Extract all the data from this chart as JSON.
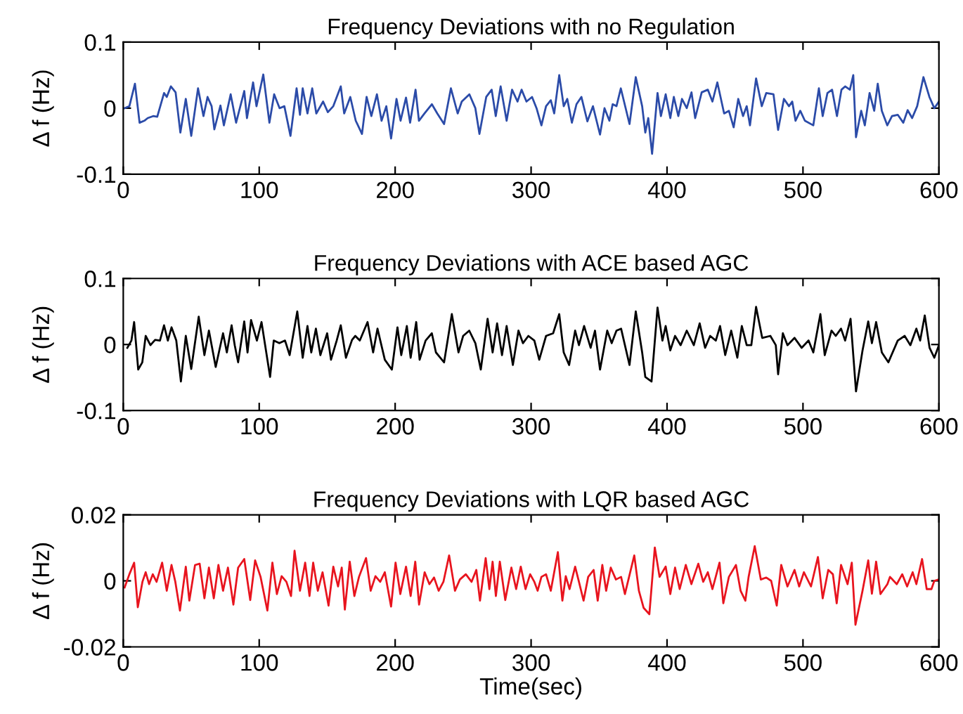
{
  "chart_data": [
    {
      "type": "line",
      "title": "Frequency Deviations with no Regulation",
      "ylabel": "Δ f (Hz)",
      "xlim": [
        0,
        600
      ],
      "xticks": [
        0,
        100,
        200,
        300,
        400,
        500,
        600
      ],
      "ylim": [
        -0.1,
        0.1
      ],
      "yticks": [
        -0.1,
        0,
        0.1
      ],
      "grid": false,
      "series": [
        {
          "color": "#2b4ba8",
          "x": [
            1,
            4.5,
            8.6,
            12,
            15.5,
            18,
            22,
            25,
            30,
            32,
            35,
            38.5,
            42,
            46,
            50,
            55,
            59,
            62,
            65,
            67,
            71.5,
            74,
            79,
            83,
            89,
            91,
            95.5,
            98,
            103,
            107.5,
            111,
            115,
            118.5,
            123,
            127.5,
            130,
            132,
            135.5,
            139,
            142,
            147,
            150.5,
            154.5,
            160,
            162.5,
            167,
            171,
            175.6,
            179,
            182.5,
            186.6,
            190,
            193.5,
            197,
            201,
            204,
            208,
            211,
            215,
            217.5,
            221.6,
            227,
            231,
            236,
            241,
            246,
            249,
            254.6,
            259,
            262,
            267,
            271,
            274,
            277.6,
            282,
            286,
            290,
            293,
            296.6,
            300.7,
            304,
            307.6,
            311,
            314.5,
            317,
            320.7,
            324,
            326.6,
            330,
            333.4,
            337,
            341.4,
            345.5,
            350.7,
            354,
            357.6,
            360,
            362.8,
            366,
            372.4,
            377,
            381.7,
            384,
            386.2,
            389,
            393,
            395.5,
            399,
            402.4,
            405,
            408.3,
            411,
            414.5,
            418,
            420.7,
            425.5,
            430,
            433.4,
            437,
            442,
            445.5,
            449,
            452.4,
            455.9,
            458.6,
            461,
            465.5,
            469.7,
            473,
            478.3,
            481.7,
            486,
            489.7,
            492.1,
            494.5,
            498,
            501.4,
            507.6,
            511.7,
            514.5,
            518,
            521.4,
            525,
            528.3,
            531,
            534.5,
            537,
            539,
            542.8,
            545.5,
            549,
            552.4,
            555,
            558,
            562,
            565.5,
            569.7,
            573.8,
            577,
            580.3,
            584,
            588.6,
            593,
            596.6,
            600
          ],
          "values": [
            0,
            0.003,
            0.037,
            -0.022,
            -0.019,
            -0.015,
            -0.012,
            -0.013,
            0.023,
            0.017,
            0.033,
            0.024,
            -0.037,
            0.014,
            -0.042,
            0.03,
            -0.012,
            0.017,
            0.003,
            -0.032,
            0.004,
            -0.026,
            0.021,
            -0.022,
            0.026,
            -0.015,
            0.039,
            0.003,
            0.051,
            -0.022,
            0.021,
            0,
            0.003,
            -0.042,
            0.03,
            -0.01,
            0.03,
            -0.008,
            0.03,
            -0.008,
            0.01,
            -0.006,
            0.003,
            0.033,
            -0.008,
            0.017,
            -0.019,
            -0.039,
            0.017,
            -0.012,
            0.021,
            -0.019,
            0.003,
            -0.046,
            0.014,
            -0.019,
            0.016,
            -0.022,
            0.028,
            -0.019,
            -0.008,
            0.006,
            -0.008,
            -0.024,
            0.03,
            -0.008,
            0.01,
            0.021,
            0,
            -0.039,
            0.017,
            0.028,
            -0.012,
            0.033,
            -0.019,
            0.028,
            0.01,
            0.028,
            0.01,
            0.017,
            0,
            -0.026,
            0.003,
            0.012,
            -0.008,
            0.05,
            0.003,
            0.014,
            -0.022,
            0.006,
            0.017,
            -0.02,
            0.003,
            -0.04,
            0,
            -0.019,
            0.006,
            0.003,
            0.03,
            -0.024,
            0.047,
            0.003,
            -0.037,
            -0.015,
            -0.069,
            0.023,
            -0.012,
            0.021,
            -0.015,
            0.017,
            -0.012,
            0.014,
            0,
            0.024,
            -0.015,
            0.024,
            0.028,
            0.01,
            0.039,
            -0.008,
            -0.004,
            -0.029,
            0.014,
            -0.012,
            0.003,
            -0.026,
            0.045,
            0.003,
            0.023,
            0.021,
            -0.033,
            0.014,
            0.003,
            0.01,
            -0.019,
            -0.004,
            -0.019,
            -0.026,
            0.03,
            -0.012,
            0.023,
            0.028,
            -0.012,
            0.028,
            0.033,
            0.028,
            0.05,
            -0.044,
            -0.004,
            -0.026,
            0.023,
            -0.004,
            0.037,
            -0.004,
            -0.026,
            -0.012,
            -0.01,
            -0.022,
            -0.003,
            -0.015,
            0.003,
            0.047,
            0.017,
            0,
            0.01
          ]
        }
      ]
    },
    {
      "type": "line",
      "title": "Frequency Deviations with ACE based AGC",
      "ylabel": "Δ f (Hz)",
      "xlim": [
        0,
        600
      ],
      "xticks": [
        0,
        100,
        200,
        300,
        400,
        500,
        600
      ],
      "ylim": [
        -0.1,
        0.1
      ],
      "yticks": [
        -0.1,
        0,
        0.1
      ],
      "grid": false,
      "series": [
        {
          "color": "#000000",
          "x": [
            3,
            6,
            8,
            11,
            14,
            16.5,
            20,
            23.4,
            27,
            30,
            32.8,
            35.5,
            39,
            42.4,
            46,
            50,
            55.5,
            59.7,
            63,
            68,
            73.4,
            76.2,
            79.7,
            82,
            84.5,
            89,
            91.4,
            94,
            98.3,
            101.7,
            108,
            110.7,
            114.8,
            119,
            122.4,
            128,
            132,
            135.5,
            138.3,
            141.7,
            145,
            150,
            152.8,
            157,
            160,
            163.8,
            168.3,
            170.7,
            174,
            179.7,
            183.8,
            187,
            192.4,
            197.6,
            201.7,
            204.5,
            208.6,
            211.4,
            215.5,
            218,
            222.4,
            227,
            230,
            236,
            241.7,
            246.6,
            250,
            254.5,
            259,
            263,
            268,
            271.7,
            275,
            278.6,
            282,
            286.6,
            290.7,
            294,
            298,
            302.4,
            306,
            311,
            316.2,
            320.7,
            324,
            328,
            332.4,
            335.2,
            339,
            343.8,
            347,
            350.7,
            356,
            359.3,
            362.8,
            366.2,
            372.4,
            377,
            381.7,
            384,
            388.6,
            393,
            396.6,
            399,
            402.4,
            405.9,
            410,
            414.5,
            419.7,
            424,
            428,
            431.7,
            435.9,
            439,
            442.8,
            447.2,
            451.7,
            455,
            458.6,
            462,
            465.5,
            470,
            476,
            480,
            481.7,
            485.2,
            488.6,
            493.8,
            499,
            504.1,
            507.6,
            512.8,
            516,
            521,
            524.1,
            528,
            531,
            535,
            539,
            543.8,
            548,
            550.7,
            553.8,
            558,
            562.8,
            569.7,
            574.8,
            579,
            583.4,
            586.2,
            589.6,
            593.1,
            596.6,
            600
          ],
          "values": [
            -0.005,
            0.006,
            0.034,
            -0.038,
            -0.027,
            0.013,
            -0.001,
            0.007,
            0.006,
            0.029,
            0.006,
            0.026,
            0.006,
            -0.056,
            0.013,
            -0.037,
            0.042,
            -0.016,
            0.021,
            -0.034,
            0.017,
            -0.012,
            0.029,
            -0.001,
            -0.027,
            0.035,
            -0.012,
            0.037,
            0.006,
            0.034,
            -0.049,
            0.006,
            0.002,
            0.006,
            -0.016,
            0.05,
            -0.02,
            0.028,
            -0.012,
            0.024,
            -0.016,
            0.017,
            -0.023,
            0.006,
            0.029,
            -0.02,
            0.007,
            0.013,
            0.006,
            0.034,
            -0.012,
            0.024,
            -0.023,
            -0.038,
            0.026,
            -0.016,
            0.028,
            -0.02,
            0.034,
            -0.023,
            0.006,
            0.017,
            -0.012,
            -0.027,
            0.046,
            -0.012,
            0.013,
            0.021,
            0.002,
            -0.038,
            0.039,
            -0.012,
            0.032,
            -0.016,
            0.028,
            -0.031,
            0.021,
            0.002,
            0.013,
            0.006,
            -0.023,
            0.013,
            0.017,
            0.046,
            -0.012,
            -0.031,
            0.021,
            -0.001,
            0.028,
            -0.005,
            0.021,
            -0.038,
            0.021,
            0.002,
            0.021,
            0.024,
            -0.031,
            0.05,
            -0.012,
            -0.049,
            -0.056,
            0.056,
            0.006,
            0.028,
            -0.009,
            0.013,
            -0.001,
            0.021,
            -0.001,
            0.032,
            -0.005,
            0.013,
            0.006,
            0.028,
            -0.016,
            0.021,
            -0.02,
            0.028,
            -0.001,
            -0.001,
            0.057,
            0.01,
            0.013,
            -0.001,
            -0.045,
            0.017,
            -0.001,
            0.01,
            -0.005,
            0.006,
            -0.012,
            0.046,
            -0.016,
            0.021,
            0.013,
            0.024,
            0.006,
            0.039,
            -0.071,
            -0.009,
            0.035,
            0.002,
            0.034,
            -0.012,
            -0.027,
            0.006,
            0.013,
            -0.001,
            0.024,
            0.006,
            0.044,
            -0.005,
            -0.02,
            -0.001
          ]
        }
      ]
    },
    {
      "type": "line",
      "title": "Frequency Deviations with LQR based AGC",
      "xlabel": "Time(sec)",
      "ylabel": "Δ f (Hz)",
      "xlim": [
        0,
        600
      ],
      "xticks": [
        0,
        100,
        200,
        300,
        400,
        500,
        600
      ],
      "ylim": [
        -0.02,
        0.02
      ],
      "yticks": [
        -0.02,
        0,
        0.02
      ],
      "grid": false,
      "series": [
        {
          "color": "#e8141e",
          "x": [
            1,
            4.5,
            8,
            10.7,
            14.1,
            16.5,
            19,
            21.7,
            24.5,
            28.6,
            32,
            35.5,
            38.3,
            41.7,
            46,
            48.6,
            52.8,
            56.2,
            59.7,
            63,
            66.6,
            70,
            73.4,
            77,
            81,
            84.5,
            89,
            93.4,
            97,
            101,
            106,
            109.7,
            113,
            116.5,
            120,
            123.4,
            126,
            130,
            133.8,
            137,
            139.7,
            143.1,
            146.6,
            151,
            154.5,
            158,
            160.7,
            163,
            166.6,
            170,
            173.4,
            178.6,
            182,
            185.5,
            189,
            192.4,
            197,
            200.3,
            203.8,
            208,
            211.4,
            214.8,
            217.6,
            221.7,
            225.2,
            228.6,
            232,
            235.5,
            239.7,
            244,
            247.6,
            252,
            256.2,
            259.7,
            262.4,
            266.6,
            269.3,
            271.7,
            274.1,
            277,
            281,
            285.5,
            289,
            292.4,
            295.9,
            299.3,
            302.4,
            304.8,
            307.6,
            311,
            314.5,
            319.7,
            323,
            325.5,
            328.3,
            332.4,
            335.2,
            338.6,
            342,
            346,
            349,
            352.4,
            355.2,
            358.6,
            362.4,
            366.2,
            369,
            375.9,
            379.3,
            382.8,
            387,
            391,
            394.5,
            399,
            402.4,
            405.9,
            409.3,
            413.8,
            417.9,
            423,
            426.6,
            430,
            433.4,
            438.6,
            441.4,
            445.5,
            450.7,
            454.1,
            457.6,
            460,
            464.5,
            469,
            473,
            476.6,
            480.7,
            484,
            488.6,
            493.8,
            497.2,
            500.7,
            505.9,
            511,
            514.5,
            518.6,
            522,
            524.8,
            528,
            532.8,
            535.9,
            538.6,
            543.8,
            548,
            550.7,
            553.8,
            557,
            562.1,
            564,
            569,
            573,
            576.6,
            580.7,
            583.4,
            587.6,
            591,
            594.5,
            596.6,
            600
          ],
          "values": [
            -0.002,
            0.002,
            0.0055,
            -0.008,
            -0.0003,
            0.0026,
            -0.001,
            0.002,
            -0.0003,
            0.0055,
            -0.003,
            0.0048,
            -0.0003,
            -0.009,
            0.0043,
            -0.006,
            0.0048,
            0.0052,
            -0.0053,
            0.004,
            -0.0053,
            0.0048,
            -0.003,
            0.004,
            -0.0072,
            0.004,
            0.0066,
            -0.0058,
            0.0062,
            0.0012,
            -0.009,
            0.0055,
            -0.004,
            0.0014,
            -0.0003,
            -0.0046,
            0.0091,
            -0.003,
            0.0055,
            -0.0046,
            0.0055,
            -0.003,
            0.0026,
            -0.0075,
            0.0043,
            -0.0017,
            0.004,
            -0.0087,
            0.0058,
            -0.0046,
            0.0012,
            0.0069,
            -0.003,
            0.0014,
            -0.0003,
            0.0026,
            -0.0078,
            0.0055,
            -0.004,
            0.0043,
            -0.0046,
            0.0058,
            -0.0072,
            0.0026,
            -0.001,
            0.001,
            -0.003,
            -0.0003,
            0.0077,
            -0.003,
            0.0004,
            0.002,
            -0.0003,
            0.0033,
            -0.006,
            0.0069,
            -0.0025,
            0.0058,
            -0.0046,
            0.0058,
            -0.0058,
            0.004,
            -0.0025,
            0.0043,
            -0.0025,
            0.002,
            -0.0003,
            -0.003,
            0.0012,
            0.002,
            -0.003,
            0.0087,
            -0.006,
            0.0014,
            -0.0025,
            0.0043,
            -0.0003,
            -0.006,
            0.0012,
            0.0033,
            -0.006,
            0.0048,
            -0.003,
            0.004,
            0.0004,
            0.0012,
            -0.004,
            0.0077,
            -0.003,
            -0.0082,
            -0.0101,
            0.0101,
            0.0012,
            0.0043,
            -0.004,
            0.004,
            -0.0025,
            0.0048,
            -0.001,
            0.0052,
            -0.0003,
            0.0026,
            -0.0025,
            0.0055,
            -0.0068,
            0.0012,
            0.0048,
            -0.003,
            -0.006,
            0.0012,
            0.0105,
            0.0004,
            0.001,
            0,
            -0.0075,
            0.0048,
            -0.0017,
            0.0033,
            -0.0017,
            0.0026,
            -0.0017,
            0.0072,
            -0.0053,
            0.0033,
            0.002,
            -0.0068,
            0.0048,
            -0.001,
            0.0055,
            -0.0133,
            -0.003,
            0.0062,
            -0.0039,
            0.0058,
            -0.004,
            -0.001,
            0.0012,
            -0.001,
            0.002,
            -0.0017,
            0.0026,
            -0.001,
            0.0066,
            -0.0025,
            -0.0025,
            0,
            0.0004
          ]
        }
      ]
    }
  ]
}
